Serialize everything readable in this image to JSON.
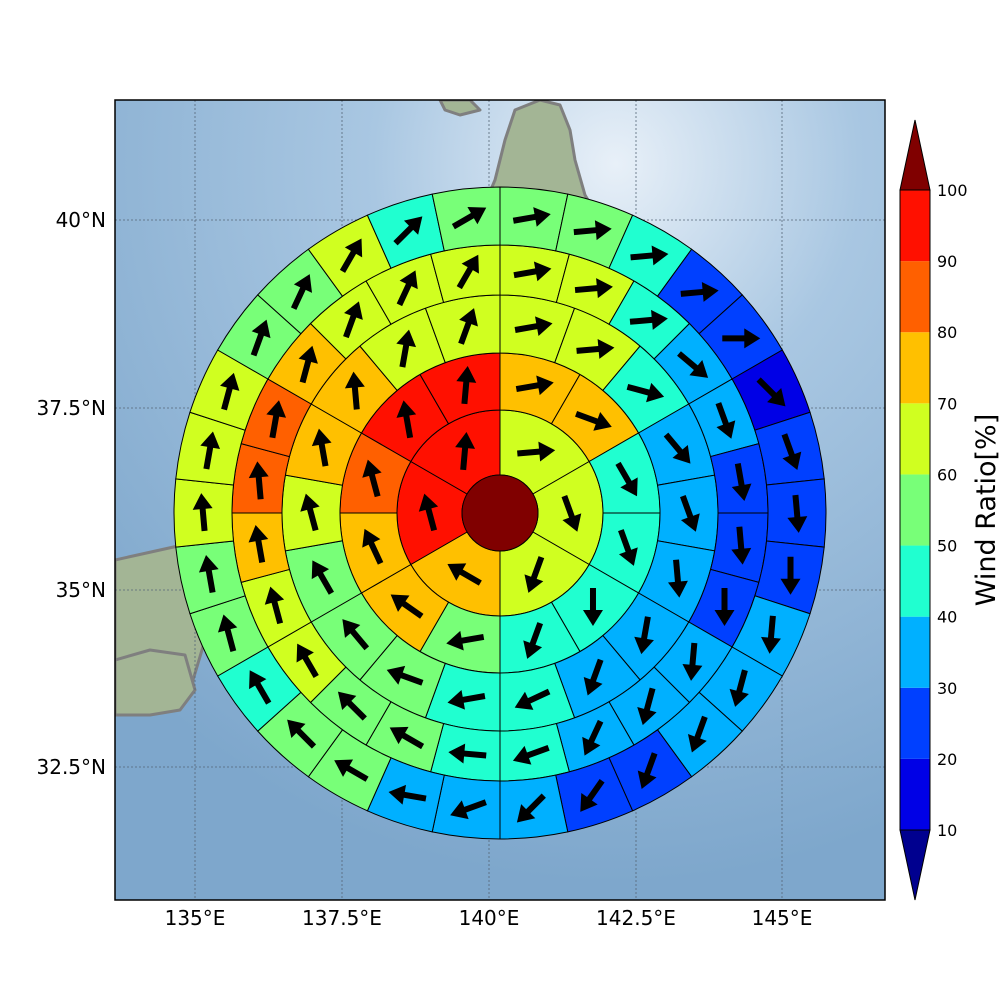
{
  "map": {
    "x_ticks": [
      "135°E",
      "137.5°E",
      "140°E",
      "142.5°E",
      "145°E"
    ],
    "y_ticks": [
      "40°N",
      "37.5°N",
      "35°N",
      "32.5°N"
    ],
    "colors": {
      "ocean": "#87afd2",
      "land": "#9aae8e",
      "coastline": "#808080",
      "grid": "#556677"
    }
  },
  "colorbar": {
    "label": "Wind Ratio[%]",
    "ticks": [
      "10",
      "20",
      "30",
      "40",
      "50",
      "60",
      "70",
      "80",
      "90",
      "100"
    ],
    "under_color": "#00008f",
    "over_color": "#800000",
    "bins": [
      {
        "min": 10,
        "max": 20,
        "color": "#0000e6"
      },
      {
        "min": 20,
        "max": 30,
        "color": "#0040ff"
      },
      {
        "min": 30,
        "max": 40,
        "color": "#00b0ff"
      },
      {
        "min": 40,
        "max": 50,
        "color": "#20ffd0"
      },
      {
        "min": 50,
        "max": 60,
        "color": "#78ff78"
      },
      {
        "min": 60,
        "max": 70,
        "color": "#d0ff20"
      },
      {
        "min": 70,
        "max": 80,
        "color": "#ffc000"
      },
      {
        "min": 80,
        "max": 90,
        "color": "#ff6000"
      },
      {
        "min": 90,
        "max": 100,
        "color": "#ff1000"
      }
    ]
  },
  "chart_data": {
    "type": "heatmap",
    "description_units": "values are wind ratio percent; direction is the arrow heading in degrees clockwise from north",
    "center": {
      "lon": 140.2,
      "lat": 36.1
    },
    "center_value": 100,
    "rings": [
      {
        "ring": 1,
        "sectors": 6,
        "values": [
          65,
          65,
          65,
          75,
          95,
          95
        ],
        "directions": [
          85,
          160,
          200,
          300,
          345,
          5
        ]
      },
      {
        "ring": 2,
        "sectors": 12,
        "values": [
          75,
          75,
          45,
          45,
          45,
          45,
          55,
          75,
          75,
          85,
          95,
          95
        ],
        "directions": [
          80,
          110,
          150,
          160,
          180,
          200,
          260,
          305,
          335,
          345,
          350,
          5
        ]
      },
      {
        "ring": 3,
        "sectors": 18,
        "values": [
          65,
          65,
          45,
          35,
          35,
          35,
          35,
          35,
          45,
          45,
          55,
          55,
          55,
          65,
          75,
          75,
          65,
          65
        ],
        "directions": [
          80,
          85,
          105,
          140,
          160,
          175,
          190,
          200,
          245,
          260,
          290,
          320,
          330,
          345,
          350,
          355,
          10,
          20
        ],
        "remark": "sector order: clockwise from north"
      },
      {
        "ring": 4,
        "sectors": 24,
        "values": [
          65,
          65,
          45,
          35,
          35,
          25,
          25,
          25,
          35,
          35,
          35,
          45,
          45,
          55,
          55,
          65,
          65,
          75,
          85,
          85,
          75,
          65,
          65,
          60
        ],
        "directions": [
          80,
          85,
          85,
          130,
          160,
          170,
          175,
          180,
          185,
          195,
          205,
          250,
          275,
          300,
          315,
          330,
          345,
          350,
          355,
          10,
          15,
          20,
          25,
          30
        ]
      },
      {
        "ring": 5,
        "sectors": 30,
        "values": [
          55,
          55,
          45,
          25,
          25,
          15,
          25,
          25,
          25,
          35,
          35,
          35,
          25,
          25,
          35,
          35,
          35,
          55,
          55,
          45,
          55,
          55,
          65,
          60,
          60,
          55,
          55,
          60,
          45,
          50
        ],
        "directions": [
          80,
          85,
          85,
          85,
          90,
          135,
          160,
          175,
          180,
          185,
          195,
          200,
          200,
          215,
          225,
          250,
          280,
          300,
          315,
          330,
          345,
          350,
          355,
          10,
          15,
          20,
          25,
          30,
          45,
          60
        ]
      }
    ],
    "xlim": [
      133.6,
      146.7
    ],
    "ylim": [
      30.8,
      41.6
    ]
  }
}
